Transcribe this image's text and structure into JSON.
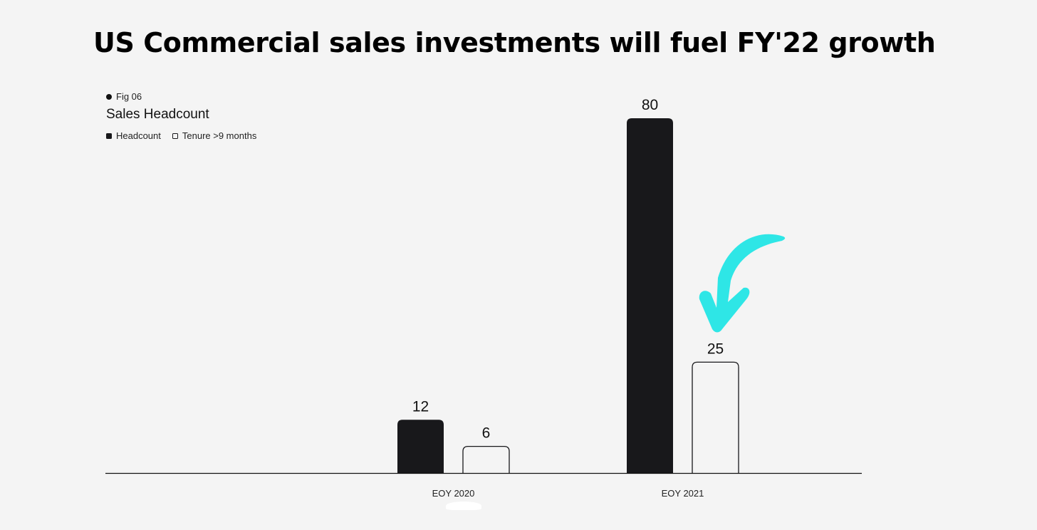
{
  "headline": "US Commercial sales investments will fuel FY'22 growth",
  "chart_data": {
    "type": "bar",
    "fig_label": "Fig 06",
    "title": "Sales Headcount",
    "legend_position": "top-left",
    "categories": [
      "EOY 2020",
      "EOY 2021"
    ],
    "series": [
      {
        "name": "Headcount",
        "values": [
          12,
          80
        ],
        "style": "filled",
        "color": "#18181b"
      },
      {
        "name": "Tenure >9 months",
        "values": [
          6,
          25
        ],
        "style": "outline",
        "color": "#18181b"
      }
    ],
    "ylim": [
      0,
      80
    ],
    "grid": false,
    "data_labels": true,
    "annotation": {
      "type": "arrow",
      "icon": "curved-arrow-icon",
      "color": "#2ee6e6",
      "points_to": "EOY 2021 / Tenure >9 months"
    }
  }
}
